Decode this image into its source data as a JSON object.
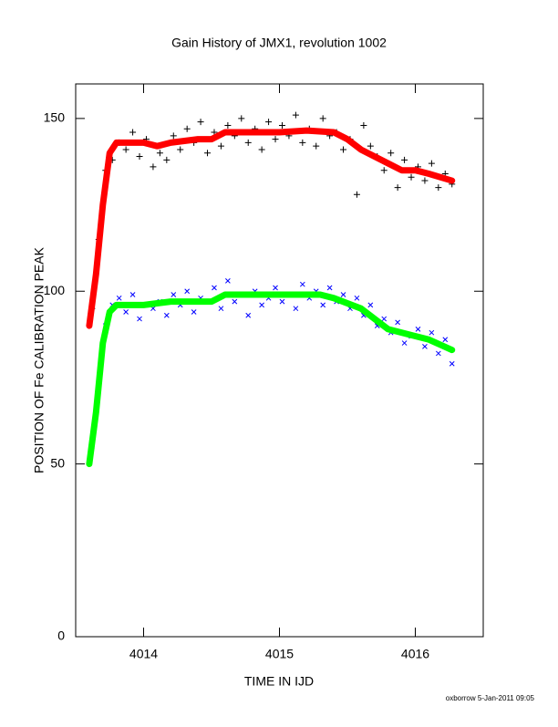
{
  "chart_data": {
    "type": "scatter",
    "title": "Gain History of JMX1, revolution 1002",
    "xlabel": "TIME IN IJD",
    "ylabel": "POSITION OF Fe CALIBRATION PEAK",
    "footer": "oxborrow  5-Jan-2011 09:05",
    "xlim": [
      4013.5,
      4016.5
    ],
    "xticks": [
      4014,
      4015,
      4016
    ],
    "ylim": [
      0,
      160
    ],
    "yticks": [
      0,
      50,
      100,
      150
    ],
    "series": [
      {
        "kind": "plus",
        "color": "#000000",
        "x": [
          4013.62,
          4013.67,
          4013.72,
          4013.77,
          4013.82,
          4013.87,
          4013.92,
          4013.97,
          4014.02,
          4014.07,
          4014.12,
          4014.17,
          4014.22,
          4014.27,
          4014.32,
          4014.37,
          4014.42,
          4014.47,
          4014.52,
          4014.57,
          4014.62,
          4014.67,
          4014.72,
          4014.77,
          4014.82,
          4014.87,
          4014.92,
          4014.97,
          4015.02,
          4015.07,
          4015.12,
          4015.17,
          4015.22,
          4015.27,
          4015.32,
          4015.37,
          4015.42,
          4015.47,
          4015.52,
          4015.57,
          4015.62,
          4015.67,
          4015.72,
          4015.77,
          4015.82,
          4015.87,
          4015.92,
          4015.97,
          4016.02,
          4016.07,
          4016.12,
          4016.17,
          4016.22,
          4016.27
        ],
        "values": [
          95,
          115,
          135,
          138,
          143,
          141,
          146,
          139,
          144,
          136,
          140,
          138,
          145,
          141,
          147,
          143,
          149,
          140,
          146,
          142,
          148,
          145,
          150,
          143,
          147,
          141,
          149,
          144,
          148,
          145,
          151,
          143,
          147,
          142,
          150,
          145,
          146,
          141,
          144,
          128,
          148,
          142,
          139,
          135,
          140,
          130,
          138,
          133,
          136,
          132,
          137,
          130,
          134,
          131
        ]
      },
      {
        "kind": "cross",
        "color": "#0000ff",
        "x": [
          4013.62,
          4013.67,
          4013.72,
          4013.77,
          4013.82,
          4013.87,
          4013.92,
          4013.97,
          4014.02,
          4014.07,
          4014.12,
          4014.17,
          4014.22,
          4014.27,
          4014.32,
          4014.37,
          4014.42,
          4014.47,
          4014.52,
          4014.57,
          4014.62,
          4014.67,
          4014.72,
          4014.77,
          4014.82,
          4014.87,
          4014.92,
          4014.97,
          4015.02,
          4015.07,
          4015.12,
          4015.17,
          4015.22,
          4015.27,
          4015.32,
          4015.37,
          4015.42,
          4015.47,
          4015.52,
          4015.57,
          4015.62,
          4015.67,
          4015.72,
          4015.77,
          4015.82,
          4015.87,
          4015.92,
          4015.97,
          4016.02,
          4016.07,
          4016.12,
          4016.17,
          4016.22,
          4016.27
        ],
        "values": [
          55,
          72,
          90,
          96,
          98,
          94,
          99,
          92,
          96,
          95,
          97,
          93,
          99,
          96,
          100,
          94,
          98,
          97,
          101,
          95,
          103,
          97,
          99,
          93,
          100,
          96,
          98,
          101,
          97,
          99,
          95,
          102,
          98,
          100,
          96,
          101,
          97,
          99,
          95,
          98,
          93,
          96,
          90,
          92,
          88,
          91,
          85,
          87,
          89,
          84,
          88,
          82,
          86,
          79
        ]
      },
      {
        "kind": "line",
        "color": "#ff0000",
        "x": [
          4013.6,
          4013.65,
          4013.7,
          4013.75,
          4013.8,
          4014.0,
          4014.1,
          4014.2,
          4014.4,
          4014.5,
          4014.6,
          4014.8,
          4015.0,
          4015.2,
          4015.4,
          4015.5,
          4015.6,
          4015.8,
          4015.9,
          4016.0,
          4016.1,
          4016.27
        ],
        "values": [
          90,
          105,
          125,
          140,
          143,
          143,
          142,
          143,
          144,
          144,
          146,
          146,
          146,
          146.5,
          146,
          144,
          141,
          137,
          135,
          135,
          134,
          132
        ]
      },
      {
        "kind": "line",
        "color": "#00ff00",
        "x": [
          4013.6,
          4013.65,
          4013.7,
          4013.75,
          4013.8,
          4014.0,
          4014.2,
          4014.5,
          4014.6,
          4015.0,
          4015.3,
          4015.4,
          4015.6,
          4015.7,
          4015.8,
          4016.0,
          4016.1,
          4016.27
        ],
        "values": [
          50,
          65,
          85,
          94,
          96,
          96,
          97,
          97,
          99,
          99,
          99,
          98,
          95,
          92,
          89,
          87,
          86,
          83
        ]
      }
    ]
  }
}
